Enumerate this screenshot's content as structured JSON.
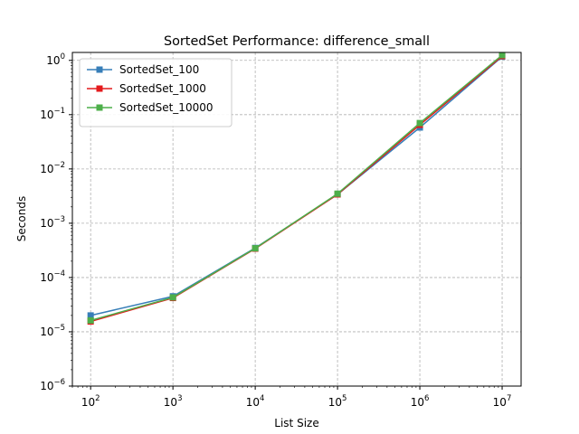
{
  "chart_data": {
    "type": "line",
    "title": "SortedSet Performance: difference_small",
    "xlabel": "List Size",
    "ylabel": "Seconds",
    "xscale": "log",
    "yscale": "log",
    "xlim": [
      60,
      17000000
    ],
    "ylim": [
      1e-06,
      1.4
    ],
    "x": [
      100,
      1000,
      10000,
      100000,
      1000000,
      10000000
    ],
    "x_ticks": [
      {
        "value": 100,
        "base": "10",
        "exp": "2"
      },
      {
        "value": 1000,
        "base": "10",
        "exp": "3"
      },
      {
        "value": 10000,
        "base": "10",
        "exp": "4"
      },
      {
        "value": 100000,
        "base": "10",
        "exp": "5"
      },
      {
        "value": 1000000,
        "base": "10",
        "exp": "6"
      },
      {
        "value": 10000000,
        "base": "10",
        "exp": "7"
      }
    ],
    "y_ticks": [
      {
        "value": 1e-06,
        "base": "10",
        "exp": "−6"
      },
      {
        "value": 1e-05,
        "base": "10",
        "exp": "−5"
      },
      {
        "value": 0.0001,
        "base": "10",
        "exp": "−4"
      },
      {
        "value": 0.001,
        "base": "10",
        "exp": "−3"
      },
      {
        "value": 0.01,
        "base": "10",
        "exp": "−2"
      },
      {
        "value": 0.1,
        "base": "10",
        "exp": "−1"
      },
      {
        "value": 1,
        "base": "10",
        "exp": "0"
      }
    ],
    "grid": true,
    "legend_position": "top-left",
    "series": [
      {
        "name": "SortedSet_100",
        "color": "#377eb8",
        "values": [
          2e-05,
          4.5e-05,
          0.00035,
          0.0034,
          0.058,
          1.17
        ]
      },
      {
        "name": "SortedSet_1000",
        "color": "#e41a1c",
        "values": [
          1.55e-05,
          4.2e-05,
          0.00034,
          0.0034,
          0.065,
          1.2
        ]
      },
      {
        "name": "SortedSet_10000",
        "color": "#4daf4a",
        "values": [
          1.62e-05,
          4.3e-05,
          0.000345,
          0.0035,
          0.07,
          1.25
        ]
      }
    ]
  }
}
